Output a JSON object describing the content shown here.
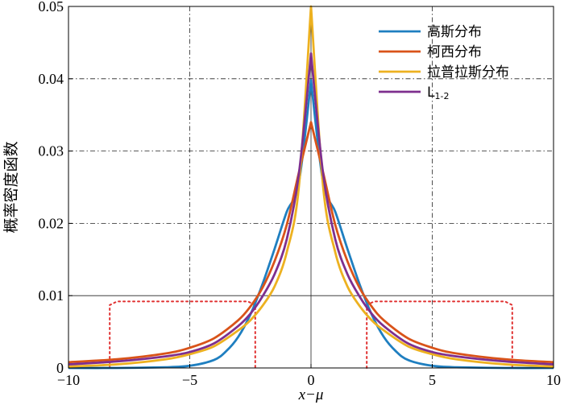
{
  "chart_data": {
    "type": "line",
    "xlabel": "x−μ",
    "ylabel": "概率密度函数",
    "xlim": [
      -10,
      10
    ],
    "ylim": [
      0,
      0.05
    ],
    "xticks": [
      -10,
      -5,
      0,
      5,
      10
    ],
    "xtick_labels": [
      "−10",
      "−5",
      "0",
      "5",
      "10"
    ],
    "yticks": [
      0,
      0.01,
      0.02,
      0.03,
      0.04,
      0.05
    ],
    "ytick_labels": [
      "0",
      "0.01",
      "0.02",
      "0.03",
      "0.04",
      "0.05"
    ],
    "grid": true,
    "legend_position": "top-right",
    "series": [
      {
        "name": "高斯分布",
        "color": "#1f7fc0",
        "x": [
          -10,
          -8,
          -6,
          -5,
          -4,
          -3.5,
          -3,
          -2.5,
          -2,
          -1.5,
          -1,
          -0.5,
          0,
          0.5,
          1,
          1.5,
          2,
          2.5,
          3,
          3.5,
          4,
          5,
          6,
          8,
          10
        ],
        "y": [
          0.0,
          0.0,
          0.0001,
          0.0003,
          0.0011,
          0.0023,
          0.0043,
          0.0074,
          0.0116,
          0.0165,
          0.0216,
          0.0256,
          0.0398,
          0.0256,
          0.0216,
          0.0165,
          0.0116,
          0.0074,
          0.0043,
          0.0023,
          0.0011,
          0.0003,
          0.0001,
          0.0,
          0.0
        ]
      },
      {
        "name": "柯西分布",
        "color": "#d95319",
        "x": [
          -10,
          -8,
          -6,
          -5,
          -4,
          -3,
          -2.5,
          -2,
          -1.5,
          -1,
          -0.5,
          0,
          0.5,
          1,
          1.5,
          2,
          2.5,
          3,
          4,
          5,
          6,
          8,
          10
        ],
        "y": [
          0.0008,
          0.0012,
          0.002,
          0.0028,
          0.0041,
          0.0066,
          0.0085,
          0.0111,
          0.0148,
          0.0198,
          0.027,
          0.034,
          0.027,
          0.0198,
          0.0148,
          0.0111,
          0.0085,
          0.0066,
          0.0041,
          0.0028,
          0.002,
          0.0012,
          0.0008
        ]
      },
      {
        "name": "拉普拉斯分布",
        "color": "#edb120",
        "x": [
          -10,
          -8,
          -6,
          -5,
          -4,
          -3,
          -2.5,
          -2,
          -1.5,
          -1,
          -0.5,
          0,
          0.5,
          1,
          1.5,
          2,
          2.5,
          3,
          4,
          5,
          6,
          8,
          10
        ],
        "y": [
          0.0002,
          0.0005,
          0.0012,
          0.0019,
          0.003,
          0.0052,
          0.0066,
          0.0086,
          0.0113,
          0.016,
          0.025,
          0.05,
          0.025,
          0.016,
          0.0113,
          0.0086,
          0.0066,
          0.0052,
          0.003,
          0.0019,
          0.0012,
          0.0005,
          0.0002
        ]
      },
      {
        "name": "L1-2",
        "color": "#7e2f8e",
        "x": [
          -10,
          -8,
          -6,
          -5,
          -4,
          -3,
          -2.5,
          -2,
          -1.5,
          -1,
          -0.5,
          0,
          0.5,
          1,
          1.5,
          2,
          2.5,
          3,
          4,
          5,
          6,
          8,
          10
        ],
        "y": [
          0.0005,
          0.0009,
          0.0016,
          0.0022,
          0.0034,
          0.0058,
          0.0075,
          0.0099,
          0.013,
          0.0178,
          0.0268,
          0.0435,
          0.0268,
          0.0178,
          0.013,
          0.0099,
          0.0075,
          0.0058,
          0.0034,
          0.0022,
          0.0016,
          0.0009,
          0.0005
        ]
      }
    ],
    "annotations": [
      {
        "style": "dotted",
        "color": "#e03030",
        "x": [
          -8.3,
          -8.3,
          -8.0,
          -2.6,
          -2.3,
          -2.3
        ],
        "y": [
          0.0,
          0.0087,
          0.0092,
          0.0092,
          0.0087,
          0.0
        ]
      },
      {
        "style": "dotted",
        "color": "#e03030",
        "x": [
          2.3,
          2.3,
          2.6,
          8.0,
          8.3,
          8.3
        ],
        "y": [
          0.0,
          0.0087,
          0.0092,
          0.0092,
          0.0087,
          0.0
        ]
      }
    ]
  }
}
